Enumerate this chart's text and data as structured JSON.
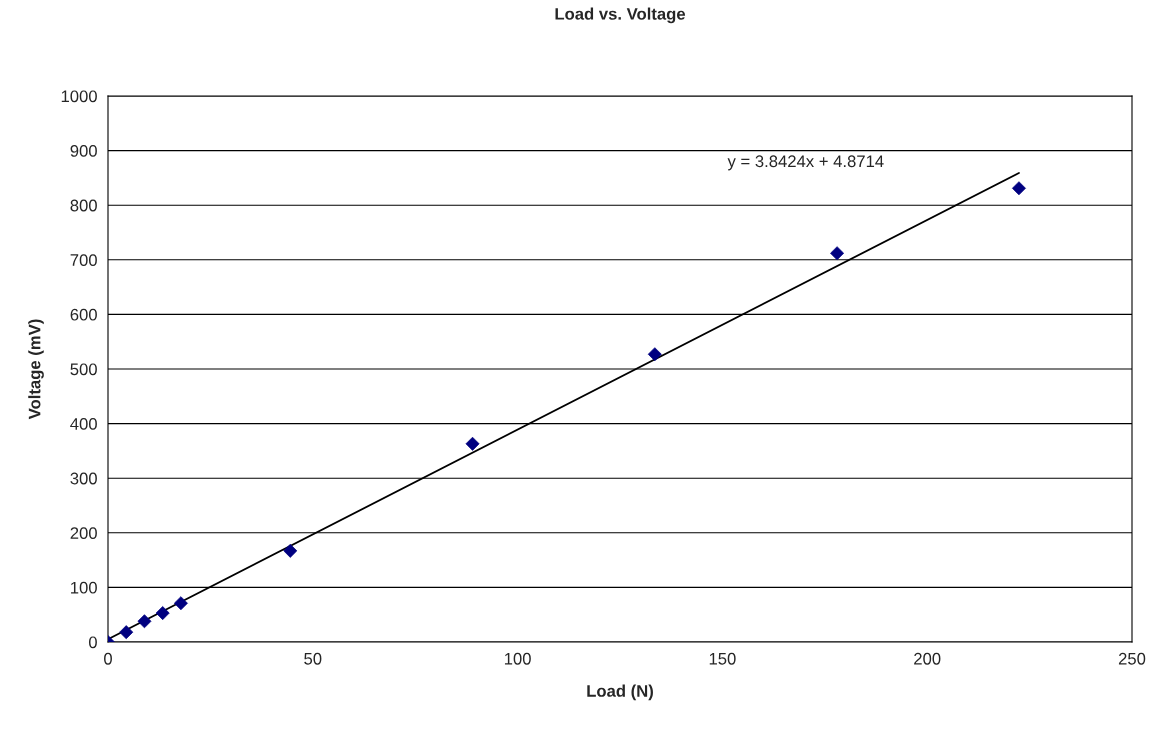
{
  "chart_data": {
    "type": "scatter",
    "title": "Load vs. Voltage",
    "xlabel": "Load (N)",
    "ylabel": "Voltage (mV)",
    "series": [
      {
        "color": "#000080",
        "marker": "diamond",
        "x": [
          0,
          4.45,
          8.9,
          13.35,
          17.8,
          44.5,
          89,
          133.5,
          178,
          222.4
        ],
        "values": [
          0,
          18,
          38,
          53,
          71,
          167,
          363,
          527,
          712,
          831
        ]
      },
      {
        "type": "line",
        "color": "#000000",
        "marker": "none",
        "line_style": "solid",
        "x": [
          0,
          222.4
        ],
        "values": [
          5,
          859
        ]
      }
    ],
    "xlim": [
      0,
      250
    ],
    "xticks": [
      0,
      50,
      100,
      150,
      200,
      250
    ],
    "ylim": [
      0,
      1000
    ],
    "yticks": [
      0,
      100,
      200,
      300,
      400,
      500,
      600,
      700,
      800,
      900,
      1000
    ],
    "grid": "y",
    "legend": false,
    "annotations": [
      "y = 3.8424x + 4.8714"
    ]
  }
}
